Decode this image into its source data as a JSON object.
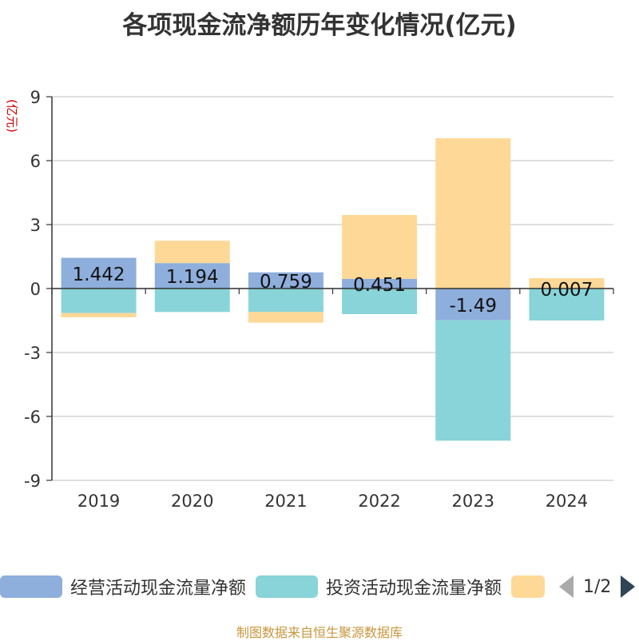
{
  "title": "各项现金流净额历年变化情况(亿元)",
  "y_unit_label": "(亿元)",
  "legend": {
    "items": [
      {
        "label": "经营活动现金流量净额",
        "color": "#8eaedc"
      },
      {
        "label": "投资活动现金流量净额",
        "color": "#88d4d8"
      },
      {
        "label": "",
        "color": "#fed897"
      }
    ],
    "pager": "1/2"
  },
  "source": "制图数据来自恒生聚源数据库",
  "chart_data": {
    "type": "bar",
    "stacked": true,
    "categories": [
      "2019",
      "2020",
      "2021",
      "2022",
      "2023",
      "2024"
    ],
    "series": [
      {
        "name": "经营活动现金流量净额",
        "color": "#8eaedc",
        "values": [
          1.442,
          1.194,
          0.759,
          0.451,
          -1.49,
          0.007
        ]
      },
      {
        "name": "投资活动现金流量净额",
        "color": "#88d4d8",
        "values": [
          -1.15,
          -1.1,
          -1.1,
          -1.2,
          -5.65,
          -1.5
        ]
      },
      {
        "name": "",
        "color": "#fed897",
        "values": [
          -0.2,
          1.05,
          -0.5,
          3.0,
          7.05,
          0.48
        ]
      }
    ],
    "data_labels": [
      "1.442",
      "1.194",
      "0.759",
      "0.451",
      "-1.49",
      "0.007"
    ],
    "ylim": [
      -9,
      9
    ],
    "yticks": [
      -9,
      -6,
      -3,
      0,
      3,
      6,
      9
    ],
    "ylabel": "(亿元)",
    "grid": true,
    "legend_position": "bottom"
  }
}
